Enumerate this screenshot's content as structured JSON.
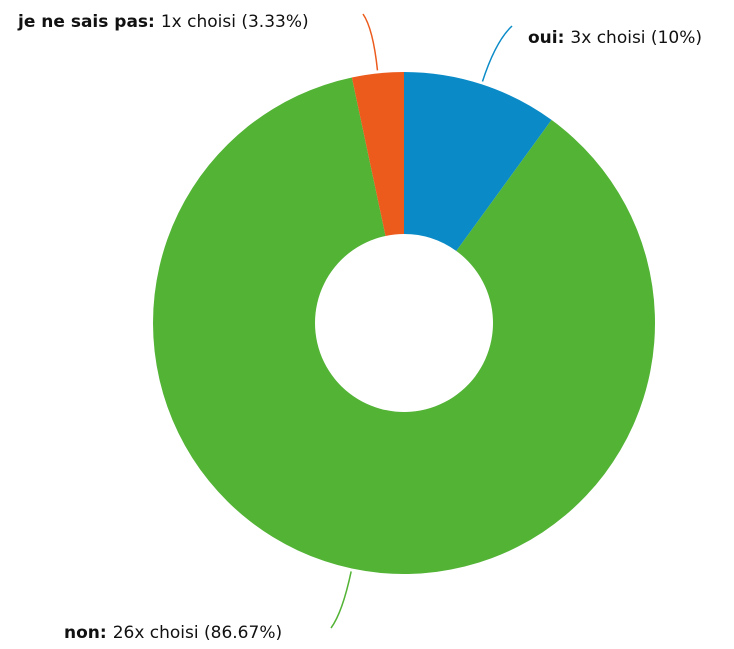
{
  "chart_data": {
    "type": "donut",
    "categories": [
      "oui:",
      "non:",
      "je ne sais pas:"
    ],
    "values": [
      10,
      86.67,
      3.33
    ],
    "value_labels": [
      "3x choisi (10%)",
      "26x choisi (86.67%)",
      "1x choisi (3.33%)"
    ],
    "colors": [
      "#0a8bc8",
      "#52b335",
      "#ec5a1c"
    ]
  }
}
